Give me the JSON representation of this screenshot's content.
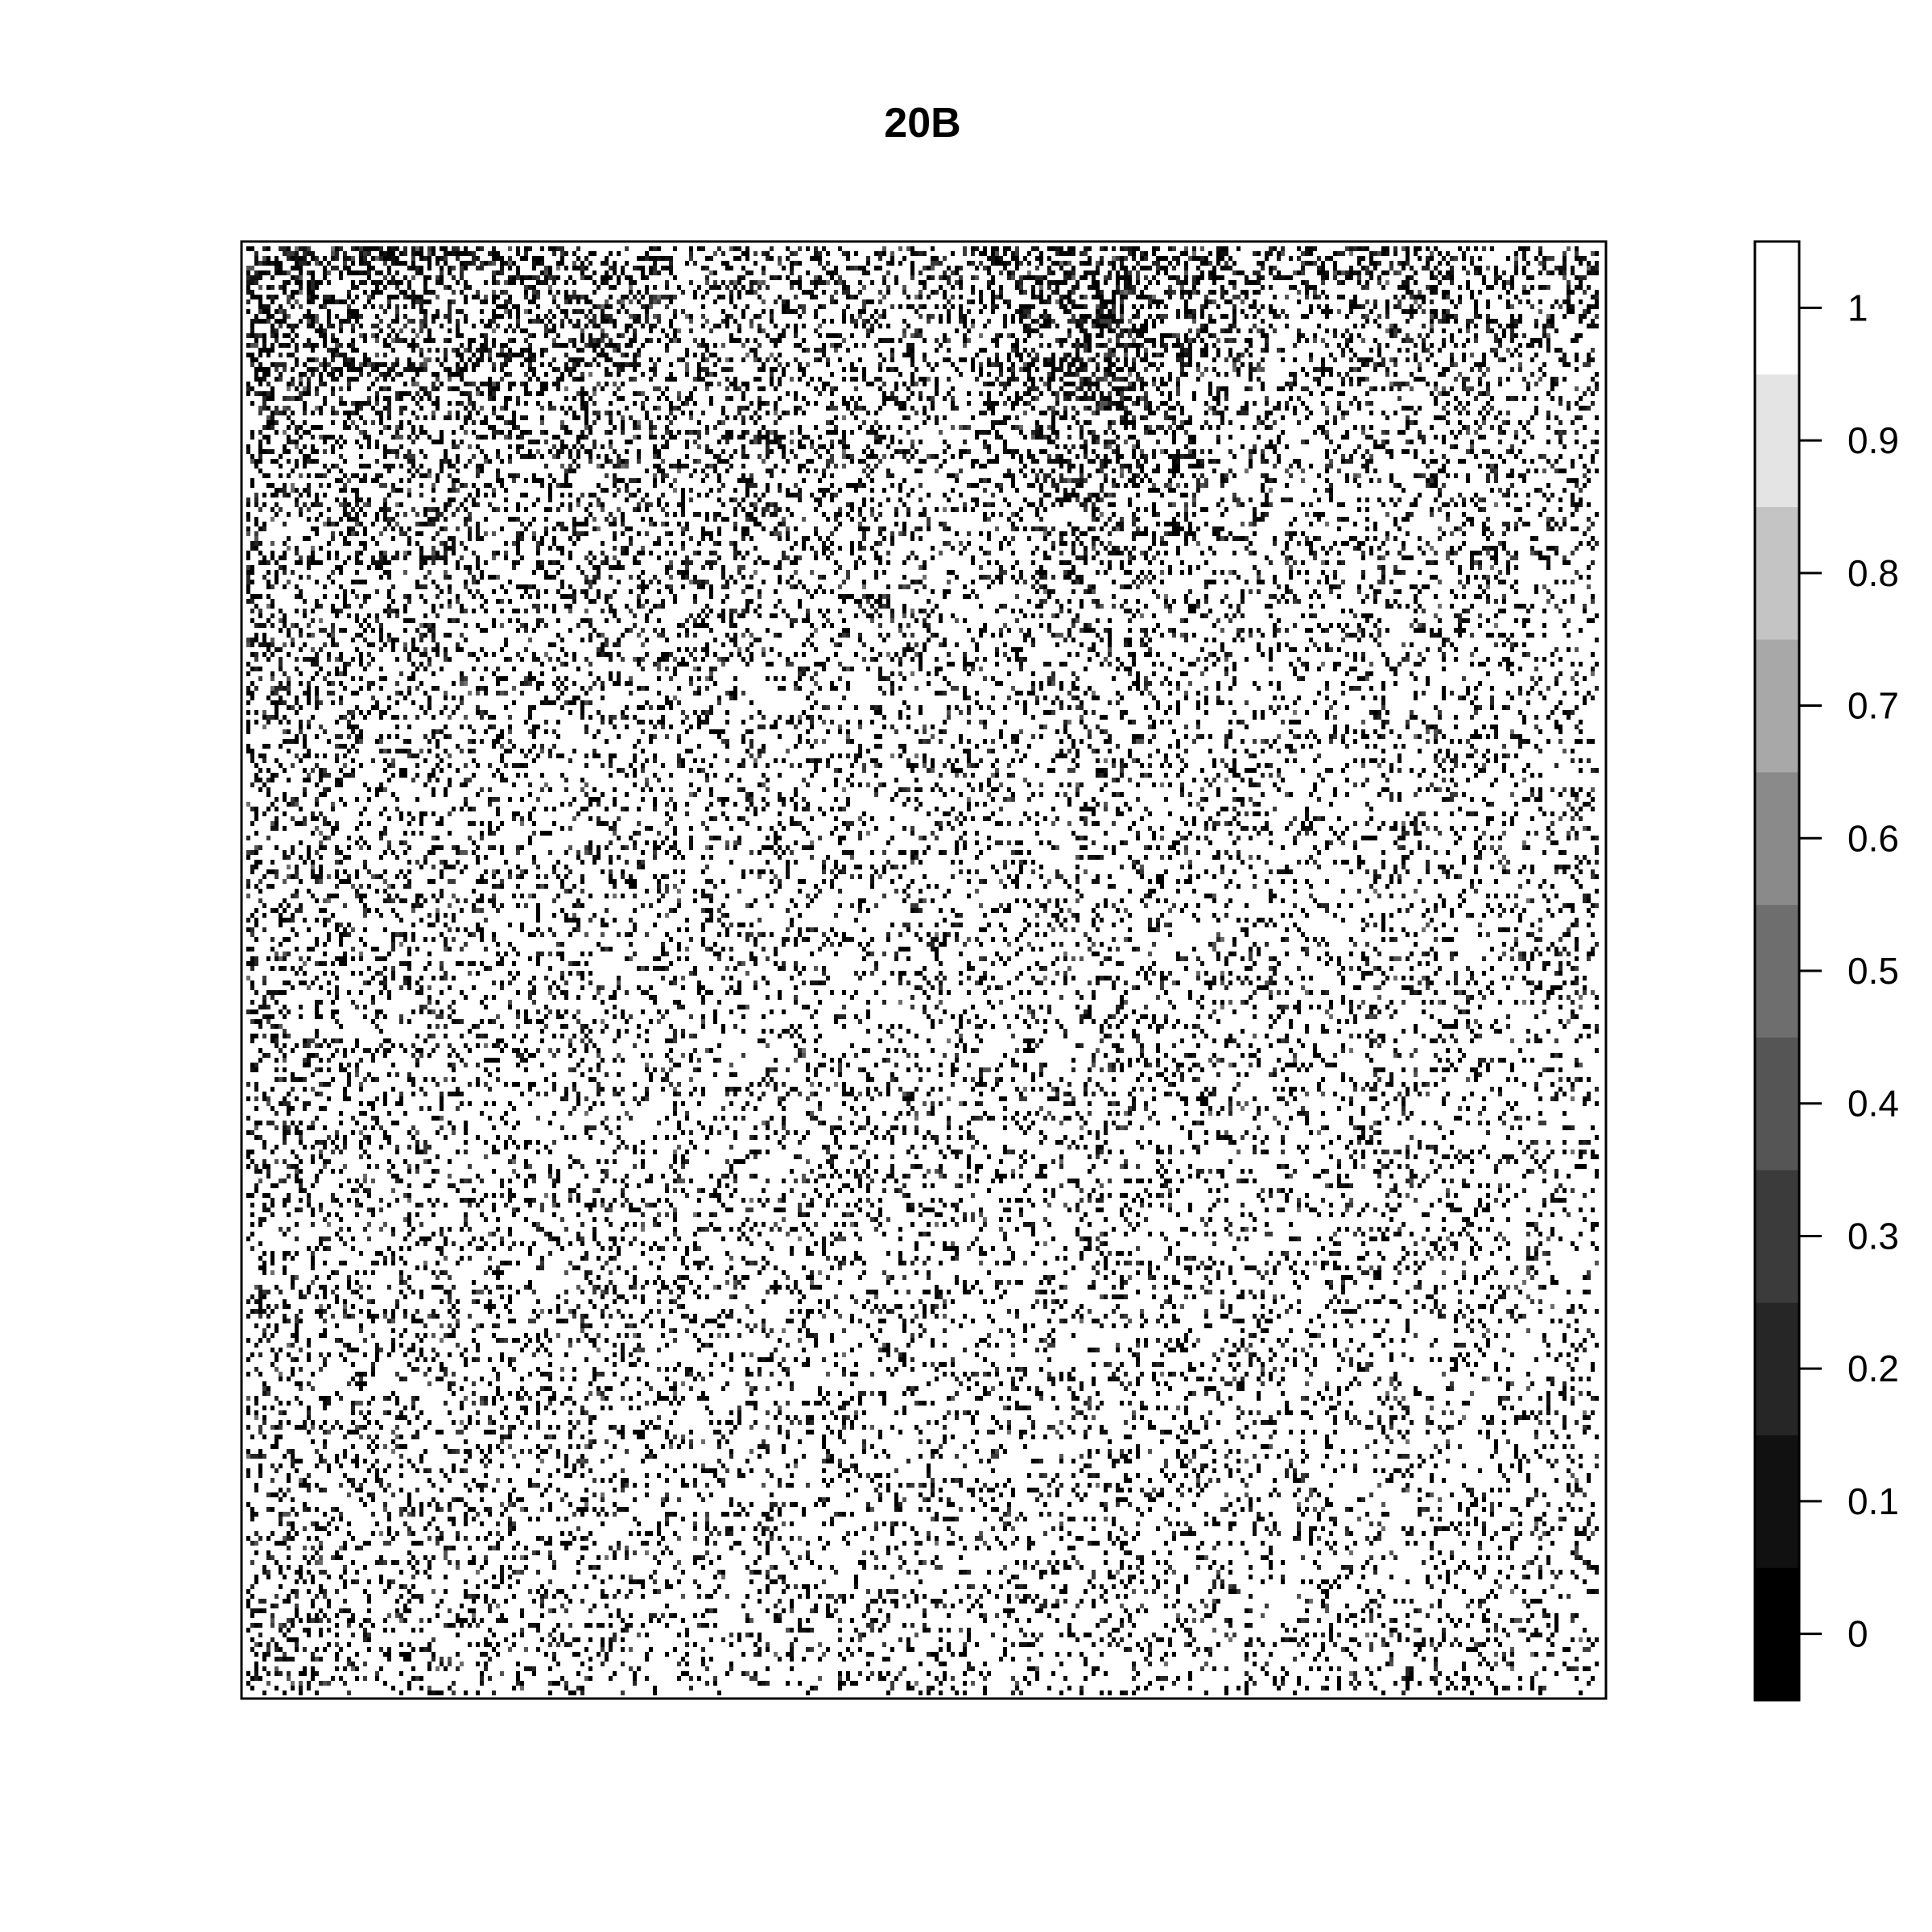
{
  "chart_data": {
    "type": "heatmap",
    "title": "20B",
    "xlabel": "",
    "ylabel": "",
    "color_scale": {
      "range": [
        0,
        1
      ],
      "breaks": [
        0,
        0.1,
        0.2,
        0.3,
        0.4,
        0.5,
        0.6,
        0.7,
        0.8,
        0.9,
        1
      ],
      "tick_labels": [
        "0",
        "0.1",
        "0.2",
        "0.3",
        "0.4",
        "0.5",
        "0.6",
        "0.7",
        "0.8",
        "0.9",
        "1"
      ],
      "colors": [
        "#000000",
        "#111111",
        "#262626",
        "#3b3b3b",
        "#555555",
        "#6e6e6e",
        "#8a8a8a",
        "#a8a8a8",
        "#c4c4c4",
        "#e4e4e4",
        "#ffffff"
      ],
      "palette": "grayscale"
    },
    "legend_position": "right",
    "grid": false
  }
}
